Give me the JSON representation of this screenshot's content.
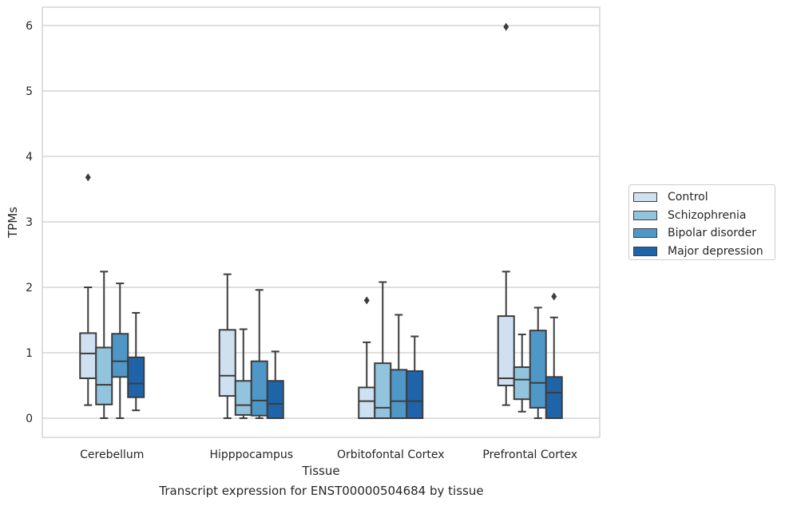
{
  "chart_data": {
    "type": "box",
    "xlabel": "Tissue",
    "ylabel": "TPMs",
    "caption": "Transcript expression for ENST00000504684 by tissue",
    "ylim": [
      -0.3,
      6.3
    ],
    "yticks": [
      "0",
      "1",
      "2",
      "3",
      "4",
      "5",
      "6"
    ],
    "categories": [
      "Cerebellum",
      "Hipppocampus",
      "Orbitofontal Cortex",
      "Prefrontal Cortex"
    ],
    "grid": "horizontal",
    "legend_position": "right",
    "series": [
      {
        "name": "Control",
        "color": "#cfe0f1",
        "boxes": [
          {
            "whisker_low": 0.2,
            "q1": 0.61,
            "median": 0.99,
            "q3": 1.3,
            "whisker_high": 2.0,
            "outliers": [
              3.68
            ]
          },
          {
            "whisker_low": 0.0,
            "q1": 0.34,
            "median": 0.65,
            "q3": 1.35,
            "whisker_high": 2.2,
            "outliers": []
          },
          {
            "whisker_low": 0.0,
            "q1": 0.0,
            "median": 0.26,
            "q3": 0.47,
            "whisker_high": 1.16,
            "outliers": [
              1.8
            ]
          },
          {
            "whisker_low": 0.2,
            "q1": 0.5,
            "median": 0.61,
            "q3": 1.56,
            "whisker_high": 2.24,
            "outliers": [
              5.98
            ]
          }
        ]
      },
      {
        "name": "Schizophrenia",
        "color": "#93c4de",
        "boxes": [
          {
            "whisker_low": 0.0,
            "q1": 0.21,
            "median": 0.51,
            "q3": 1.08,
            "whisker_high": 2.24,
            "outliers": []
          },
          {
            "whisker_low": 0.0,
            "q1": 0.05,
            "median": 0.2,
            "q3": 0.57,
            "whisker_high": 1.36,
            "outliers": []
          },
          {
            "whisker_low": 0.0,
            "q1": 0.0,
            "median": 0.16,
            "q3": 0.84,
            "whisker_high": 2.08,
            "outliers": []
          },
          {
            "whisker_low": 0.1,
            "q1": 0.29,
            "median": 0.59,
            "q3": 0.78,
            "whisker_high": 1.28,
            "outliers": []
          }
        ]
      },
      {
        "name": "Bipolar disorder",
        "color": "#4f97c7",
        "boxes": [
          {
            "whisker_low": 0.0,
            "q1": 0.63,
            "median": 0.87,
            "q3": 1.29,
            "whisker_high": 2.06,
            "outliers": []
          },
          {
            "whisker_low": 0.0,
            "q1": 0.04,
            "median": 0.27,
            "q3": 0.87,
            "whisker_high": 1.96,
            "outliers": []
          },
          {
            "whisker_low": 0.0,
            "q1": 0.0,
            "median": 0.26,
            "q3": 0.74,
            "whisker_high": 1.58,
            "outliers": []
          },
          {
            "whisker_low": 0.0,
            "q1": 0.16,
            "median": 0.54,
            "q3": 1.34,
            "whisker_high": 1.69,
            "outliers": []
          }
        ]
      },
      {
        "name": "Major depression",
        "color": "#1f63a8",
        "boxes": [
          {
            "whisker_low": 0.12,
            "q1": 0.32,
            "median": 0.53,
            "q3": 0.93,
            "whisker_high": 1.61,
            "outliers": []
          },
          {
            "whisker_low": 0.0,
            "q1": 0.0,
            "median": 0.22,
            "q3": 0.57,
            "whisker_high": 1.02,
            "outliers": []
          },
          {
            "whisker_low": 0.0,
            "q1": 0.0,
            "median": 0.26,
            "q3": 0.72,
            "whisker_high": 1.25,
            "outliers": []
          },
          {
            "whisker_low": 0.0,
            "q1": 0.0,
            "median": 0.39,
            "q3": 0.63,
            "whisker_high": 1.54,
            "outliers": [
              1.86
            ]
          }
        ]
      }
    ]
  }
}
